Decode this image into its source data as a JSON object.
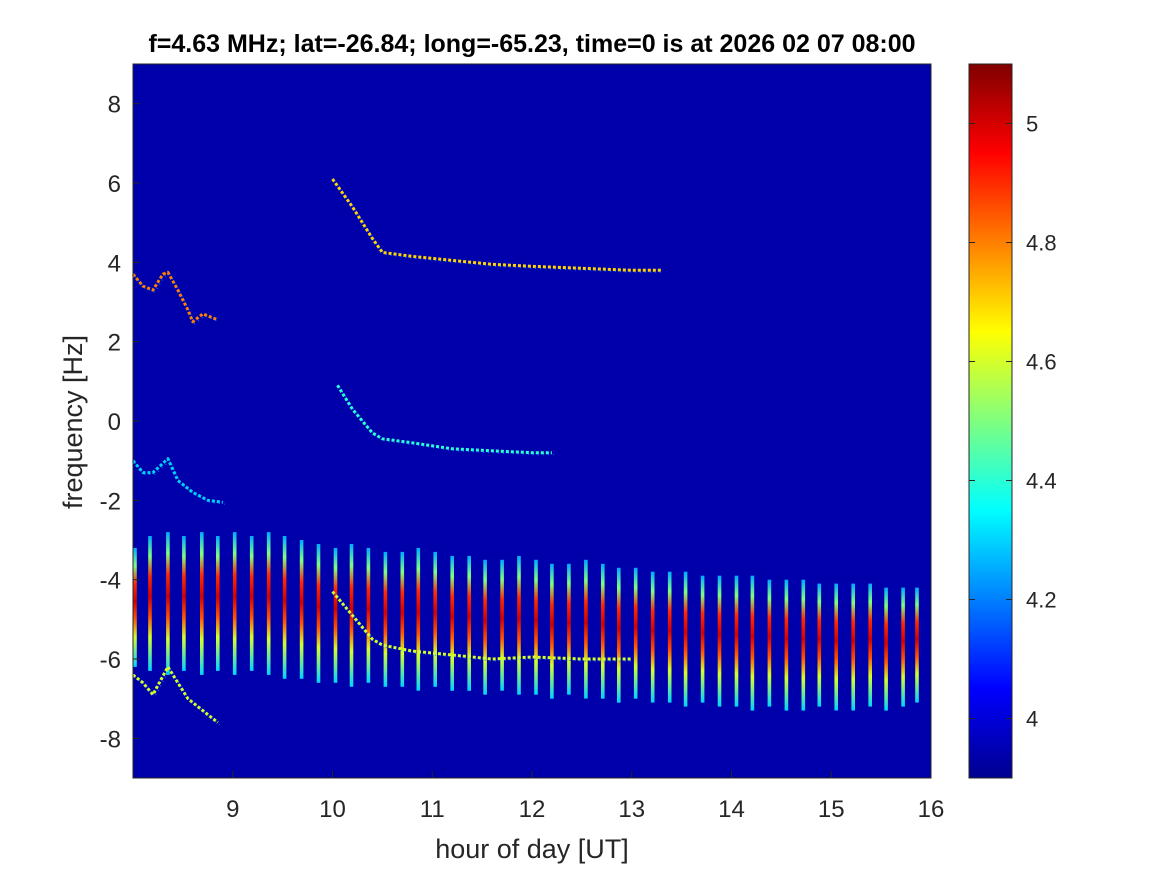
{
  "chart_data": {
    "type": "heatmap",
    "title": "f=4.63 MHz;  lat=-26.84; long=-65.23, time=0 is at 2026 02 07 08:00",
    "xlabel": "hour of day [UT]",
    "ylabel": "frequency [Hz]",
    "xlim": [
      8.0,
      16.0
    ],
    "ylim": [
      -9,
      9
    ],
    "xticks": [
      "9",
      "10",
      "11",
      "12",
      "13",
      "14",
      "15",
      "16"
    ],
    "yticks": [
      "8",
      "6",
      "4",
      "2",
      "0",
      "-2",
      "-4",
      "-6",
      "-8"
    ],
    "colorbar": {
      "colormap": "jet",
      "clim": [
        3.9,
        5.1
      ],
      "ticks": [
        "4",
        "4.2",
        "4.4",
        "4.6",
        "4.8",
        "5"
      ]
    },
    "background_value": 3.95,
    "traces": [
      {
        "name_hint": "trace-upper-right",
        "value": 4.7,
        "points": [
          [
            10.0,
            6.1
          ],
          [
            10.2,
            5.4
          ],
          [
            10.4,
            4.6
          ],
          [
            10.5,
            4.25
          ],
          [
            10.8,
            4.15
          ],
          [
            11.2,
            4.05
          ],
          [
            11.6,
            3.95
          ],
          [
            12.0,
            3.9
          ],
          [
            12.5,
            3.85
          ],
          [
            13.0,
            3.8
          ],
          [
            13.3,
            3.8
          ]
        ]
      },
      {
        "name_hint": "trace-middle",
        "value": 4.4,
        "points": [
          [
            10.05,
            0.9
          ],
          [
            10.2,
            0.3
          ],
          [
            10.4,
            -0.3
          ],
          [
            10.5,
            -0.45
          ],
          [
            10.8,
            -0.55
          ],
          [
            11.2,
            -0.7
          ],
          [
            11.6,
            -0.75
          ],
          [
            12.0,
            -0.8
          ],
          [
            12.2,
            -0.8
          ]
        ]
      },
      {
        "name_hint": "trace-lower",
        "value": 4.6,
        "points": [
          [
            10.0,
            -4.3
          ],
          [
            10.2,
            -4.9
          ],
          [
            10.4,
            -5.5
          ],
          [
            10.5,
            -5.65
          ],
          [
            10.8,
            -5.8
          ],
          [
            11.2,
            -5.9
          ],
          [
            11.6,
            -6.0
          ],
          [
            12.0,
            -5.95
          ],
          [
            12.5,
            -6.0
          ],
          [
            13.0,
            -6.0
          ]
        ]
      },
      {
        "name_hint": "trace-upper-left",
        "value": 4.8,
        "points": [
          [
            8.0,
            3.7
          ],
          [
            8.1,
            3.4
          ],
          [
            8.2,
            3.3
          ],
          [
            8.3,
            3.7
          ],
          [
            8.35,
            3.75
          ],
          [
            8.45,
            3.3
          ],
          [
            8.55,
            2.8
          ],
          [
            8.6,
            2.5
          ],
          [
            8.7,
            2.7
          ],
          [
            8.85,
            2.55
          ]
        ]
      },
      {
        "name_hint": "trace-mid-left",
        "value": 4.3,
        "points": [
          [
            8.0,
            -1.0
          ],
          [
            8.1,
            -1.3
          ],
          [
            8.2,
            -1.3
          ],
          [
            8.35,
            -0.95
          ],
          [
            8.45,
            -1.5
          ],
          [
            8.6,
            -1.8
          ],
          [
            8.75,
            -2.0
          ],
          [
            8.9,
            -2.05
          ]
        ]
      },
      {
        "name_hint": "trace-lower-left",
        "value": 4.6,
        "points": [
          [
            8.0,
            -6.4
          ],
          [
            8.1,
            -6.6
          ],
          [
            8.2,
            -6.9
          ],
          [
            8.35,
            -6.2
          ],
          [
            8.45,
            -6.6
          ],
          [
            8.55,
            -7.0
          ],
          [
            8.7,
            -7.3
          ],
          [
            8.85,
            -7.6
          ]
        ]
      }
    ],
    "stripes": {
      "x": [
        8.02,
        8.17,
        8.35,
        8.51,
        8.69,
        8.85,
        9.02,
        9.19,
        9.36,
        9.52,
        9.69,
        9.86,
        10.03,
        10.19,
        10.36,
        10.53,
        10.7,
        10.86,
        11.03,
        11.2,
        11.37,
        11.53,
        11.7,
        11.87,
        12.04,
        12.2,
        12.37,
        12.54,
        12.71,
        12.87,
        13.04,
        13.21,
        13.38,
        13.54,
        13.71,
        13.88,
        14.05,
        14.21,
        14.38,
        14.55,
        14.72,
        14.88,
        15.05,
        15.22,
        15.39,
        15.55,
        15.72,
        15.86
      ],
      "y_top": [
        -3.2,
        -2.9,
        -2.8,
        -2.9,
        -2.8,
        -2.9,
        -2.8,
        -2.9,
        -2.8,
        -2.9,
        -3.0,
        -3.1,
        -3.2,
        -3.1,
        -3.2,
        -3.3,
        -3.3,
        -3.2,
        -3.3,
        -3.4,
        -3.4,
        -3.5,
        -3.5,
        -3.4,
        -3.5,
        -3.6,
        -3.6,
        -3.5,
        -3.6,
        -3.7,
        -3.7,
        -3.8,
        -3.8,
        -3.8,
        -3.9,
        -3.9,
        -3.9,
        -3.9,
        -4.0,
        -4.0,
        -4.0,
        -4.1,
        -4.1,
        -4.1,
        -4.1,
        -4.2,
        -4.2,
        -4.2
      ],
      "y_bottom": [
        -6.2,
        -6.3,
        -6.4,
        -6.3,
        -6.4,
        -6.3,
        -6.4,
        -6.3,
        -6.4,
        -6.5,
        -6.5,
        -6.6,
        -6.6,
        -6.7,
        -6.6,
        -6.7,
        -6.7,
        -6.8,
        -6.7,
        -6.8,
        -6.8,
        -6.9,
        -6.8,
        -6.9,
        -6.9,
        -7.0,
        -6.9,
        -7.0,
        -7.0,
        -7.1,
        -7.0,
        -7.1,
        -7.1,
        -7.2,
        -7.1,
        -7.2,
        -7.2,
        -7.3,
        -7.2,
        -7.3,
        -7.3,
        -7.2,
        -7.3,
        -7.3,
        -7.2,
        -7.3,
        -7.2,
        -7.1
      ],
      "peak_value": 5.0
    }
  }
}
